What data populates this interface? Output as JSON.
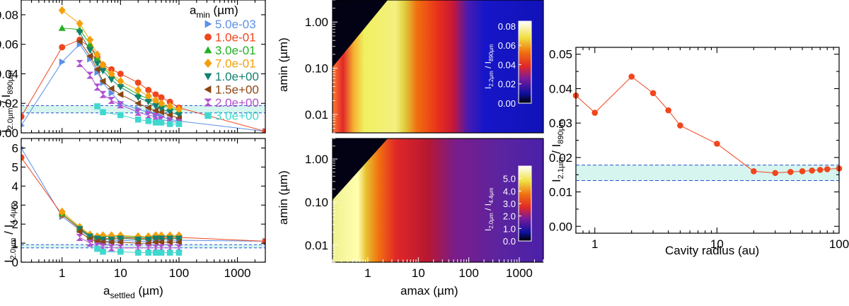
{
  "panel_a": {
    "ylabel_main": "I",
    "ylabel_sub": "2.0µm",
    "ylabel_sep": " / I",
    "ylabel_sub2": "890µm",
    "yticks": [
      "0.00",
      "0.02",
      "0.04",
      "0.06",
      "0.08"
    ],
    "legend_title": "a",
    "legend_title_sub": "min",
    "legend_title_unit": " (µm)",
    "legend": [
      {
        "label": "5.0e-03",
        "color": "#5b8fe6",
        "marker": "triangle-right"
      },
      {
        "label": "1.0e-01",
        "color": "#f0461e",
        "marker": "circle"
      },
      {
        "label": "3.0e-01",
        "color": "#22b022",
        "marker": "triangle-up"
      },
      {
        "label": "7.0e-01",
        "color": "#f5a00a",
        "marker": "diamond"
      },
      {
        "label": "1.0e+00",
        "color": "#138070",
        "marker": "triangle-down"
      },
      {
        "label": "1.5e+00",
        "color": "#8b4513",
        "marker": "triangle-left"
      },
      {
        "label": "2.0e+00",
        "color": "#b050d0",
        "marker": "hourglass"
      },
      {
        "label": "3.0e+00",
        "color": "#3fd8cf",
        "marker": "square"
      }
    ]
  },
  "panel_b": {
    "ylabel_main": "I",
    "ylabel_sub": "2.0µm",
    "ylabel_sep": " / I",
    "ylabel_sub2": "4.4µm",
    "yticks": [
      "0",
      "1",
      "2",
      "3",
      "4",
      "5",
      "6"
    ],
    "xticks": [
      "1",
      "10",
      "100",
      "1000"
    ],
    "xlabel_main": "a",
    "xlabel_sub": "settled",
    "xlabel_unit": " (µm)"
  },
  "panel_c": {
    "ylabel": "amin (µm)",
    "yticks": [
      "1.00",
      "0.10",
      "0.01"
    ],
    "colorbar_label_main": "I",
    "colorbar_label_sub": "2.2µm",
    "colorbar_label_sep": " / I",
    "colorbar_label_sub2": "890µm",
    "colorbar_ticks": [
      "0.08",
      "0.06",
      "0.04",
      "0.02",
      "0.00"
    ]
  },
  "panel_d": {
    "ylabel": "amin (µm)",
    "yticks": [
      "1.00",
      "0.10",
      "0.01"
    ],
    "xticks": [
      "1",
      "10",
      "100",
      "1000"
    ],
    "xlabel": "amax (µm)",
    "colorbar_label_main": "I",
    "colorbar_label_sub": "2.0µm",
    "colorbar_label_sep": " / I",
    "colorbar_label_sub2": "4.4µm",
    "colorbar_ticks": [
      "5.0",
      "4.0",
      "3.0",
      "2.0",
      "1.0",
      "0.0"
    ]
  },
  "chart_data": [
    {
      "type": "line",
      "panel": "top-left",
      "xscale": "log",
      "xlim": [
        0.2,
        3000
      ],
      "ylim": [
        0,
        0.09
      ],
      "band": [
        0.0135,
        0.0185
      ],
      "series": [
        {
          "name": "5.0e-03",
          "x": [
            0.2,
            1,
            2,
            3,
            4,
            5,
            7,
            10,
            20,
            30,
            40,
            50,
            70,
            100,
            3000
          ],
          "y": [
            0.005,
            0.048,
            0.06,
            0.05,
            0.041,
            0.034,
            0.027,
            0.02,
            0.016,
            0.014,
            0.012,
            0.011,
            0.009,
            0.008,
            0.001
          ]
        },
        {
          "name": "1.0e-01",
          "x": [
            0.2,
            1,
            2,
            3,
            4,
            5,
            7,
            10,
            20,
            30,
            40,
            50,
            70,
            100,
            3000
          ],
          "y": [
            0.011,
            0.058,
            0.063,
            0.058,
            0.051,
            0.046,
            0.043,
            0.04,
            0.034,
            0.029,
            0.026,
            0.024,
            0.021,
            0.017,
            0.001
          ]
        },
        {
          "name": "3.0e-01",
          "x": [
            1,
            2,
            3,
            4,
            5,
            7,
            10,
            20,
            30,
            40,
            50,
            70,
            100
          ],
          "y": [
            0.071,
            0.07,
            0.06,
            0.051,
            0.044,
            0.039,
            0.033,
            0.026,
            0.023,
            0.021,
            0.019,
            0.017,
            0.015
          ]
        },
        {
          "name": "7.0e-01",
          "x": [
            1,
            2,
            3,
            4,
            5,
            7,
            10,
            20,
            30,
            40,
            50,
            70,
            100
          ],
          "y": [
            0.083,
            0.074,
            0.063,
            0.053,
            0.046,
            0.04,
            0.035,
            0.029,
            0.025,
            0.022,
            0.02,
            0.018,
            0.016
          ]
        },
        {
          "name": "1.0e+00",
          "x": [
            2,
            3,
            4,
            5,
            7,
            10,
            20,
            30,
            40,
            50,
            70,
            100
          ],
          "y": [
            0.068,
            0.056,
            0.047,
            0.042,
            0.036,
            0.031,
            0.024,
            0.021,
            0.018,
            0.016,
            0.014,
            0.012
          ]
        },
        {
          "name": "1.5e+00",
          "x": [
            2,
            3,
            4,
            5,
            7,
            10,
            20,
            30,
            40,
            50,
            70,
            100
          ],
          "y": [
            0.062,
            0.052,
            0.043,
            0.035,
            0.03,
            0.026,
            0.02,
            0.017,
            0.015,
            0.014,
            0.012,
            0.01
          ]
        },
        {
          "name": "2.0e+00",
          "x": [
            2,
            3,
            4,
            5,
            7,
            10,
            20,
            30,
            40,
            50,
            70,
            100
          ],
          "y": [
            0.047,
            0.039,
            0.031,
            0.026,
            0.022,
            0.019,
            0.014,
            0.012,
            0.011,
            0.009,
            0.008,
            0.007
          ]
        },
        {
          "name": "3.0e+00",
          "x": [
            4,
            5,
            10,
            20,
            30,
            40,
            50,
            70,
            100
          ],
          "y": [
            0.018,
            0.014,
            0.012,
            0.009,
            0.008,
            0.007,
            0.007,
            0.006,
            0.006
          ]
        }
      ]
    },
    {
      "type": "line",
      "panel": "bottom-left",
      "xscale": "log",
      "xlim": [
        0.2,
        3000
      ],
      "ylim": [
        0,
        6.5
      ],
      "band": [
        0.75,
        0.92
      ],
      "series": [
        {
          "name": "5.0e-03",
          "x": [
            0.2,
            1,
            2,
            3,
            4,
            5,
            7,
            10,
            20,
            30,
            40,
            50,
            70,
            100,
            3000
          ],
          "y": [
            6.0,
            2.4,
            1.7,
            1.3,
            1.15,
            1.1,
            1.1,
            1.15,
            1.1,
            1.1,
            1.15,
            1.2,
            1.15,
            1.15,
            1.1
          ]
        },
        {
          "name": "1.0e-01",
          "x": [
            0.2,
            1,
            2,
            3,
            4,
            5,
            7,
            10,
            20,
            30,
            40,
            50,
            70,
            100,
            3000
          ],
          "y": [
            5.5,
            2.5,
            1.75,
            1.35,
            1.25,
            1.25,
            1.25,
            1.3,
            1.25,
            1.25,
            1.3,
            1.3,
            1.3,
            1.3,
            1.1
          ]
        },
        {
          "name": "3.0e-01",
          "x": [
            1,
            2,
            3,
            4,
            5,
            7,
            10,
            20,
            30,
            40,
            50,
            70,
            100
          ],
          "y": [
            2.55,
            1.8,
            1.4,
            1.3,
            1.35,
            1.35,
            1.35,
            1.3,
            1.3,
            1.35,
            1.35,
            1.35,
            1.35
          ]
        },
        {
          "name": "7.0e-01",
          "x": [
            1,
            2,
            3,
            4,
            5,
            7,
            10,
            20,
            30,
            40,
            50,
            70,
            100
          ],
          "y": [
            2.65,
            1.85,
            1.45,
            1.35,
            1.4,
            1.4,
            1.4,
            1.35,
            1.35,
            1.4,
            1.4,
            1.4,
            1.4
          ]
        },
        {
          "name": "1.0e+00",
          "x": [
            2,
            3,
            4,
            5,
            7,
            10,
            20,
            30,
            40,
            50,
            70,
            100
          ],
          "y": [
            1.75,
            1.35,
            1.25,
            1.2,
            1.2,
            1.25,
            1.2,
            1.2,
            1.25,
            1.25,
            1.25,
            1.25
          ]
        },
        {
          "name": "1.5e+00",
          "x": [
            2,
            3,
            4,
            5,
            7,
            10,
            20,
            30,
            40,
            50,
            70,
            100
          ],
          "y": [
            1.6,
            1.2,
            1.1,
            1.05,
            1.05,
            1.05,
            1.0,
            1.0,
            1.05,
            1.05,
            1.05,
            1.05
          ]
        },
        {
          "name": "2.0e+00",
          "x": [
            2,
            3,
            4,
            5,
            7,
            10,
            20,
            30,
            40,
            50,
            70,
            100
          ],
          "y": [
            1.3,
            1.0,
            0.85,
            0.8,
            0.75,
            0.75,
            0.75,
            0.75,
            0.75,
            0.75,
            0.75,
            0.75
          ]
        },
        {
          "name": "3.0e+00",
          "x": [
            4,
            5,
            10,
            20,
            30,
            40,
            50,
            70,
            100
          ],
          "y": [
            0.7,
            0.55,
            0.55,
            0.5,
            0.5,
            0.5,
            0.5,
            0.5,
            0.5
          ]
        }
      ]
    },
    {
      "type": "heatmap",
      "panel": "top-middle",
      "xscale": "log",
      "yscale": "log",
      "xlim": [
        0.2,
        3000
      ],
      "ylim": [
        0.004,
        3
      ],
      "colorbar_range": [
        0,
        0.085
      ],
      "colormap": "black-blue-purple-red-orange-yellow-white"
    },
    {
      "type": "heatmap",
      "panel": "bottom-middle",
      "xscale": "log",
      "yscale": "log",
      "xlim": [
        0.2,
        3000
      ],
      "ylim": [
        0.004,
        3
      ],
      "colorbar_range": [
        0,
        6
      ],
      "colormap": "black-blue-purple-red-orange-yellow-white"
    },
    {
      "type": "line",
      "panel": "right",
      "xscale": "log",
      "xlim": [
        0.7,
        100
      ],
      "ylim": [
        -0.002,
        0.052
      ],
      "xlabel": "Cavity radius (au)",
      "ylabel_main": "I",
      "ylabel_sub": "2.1µm",
      "ylabel_sep": " / I",
      "ylabel_sub2": "890µm",
      "xticks": [
        "1",
        "10",
        "100"
      ],
      "yticks": [
        "0.00",
        "0.01",
        "0.02",
        "0.03",
        "0.04",
        "0.05"
      ],
      "band": [
        0.0133,
        0.0178
      ],
      "series": [
        {
          "color": "#f0461e",
          "x": [
            0.7,
            1,
            2,
            3,
            4,
            5,
            10,
            20,
            30,
            40,
            50,
            60,
            70,
            80,
            100
          ],
          "y": [
            0.038,
            0.033,
            0.0435,
            0.0387,
            0.0337,
            0.0293,
            0.024,
            0.016,
            0.0155,
            0.0158,
            0.016,
            0.0162,
            0.0164,
            0.0166,
            0.0168
          ]
        }
      ]
    }
  ]
}
